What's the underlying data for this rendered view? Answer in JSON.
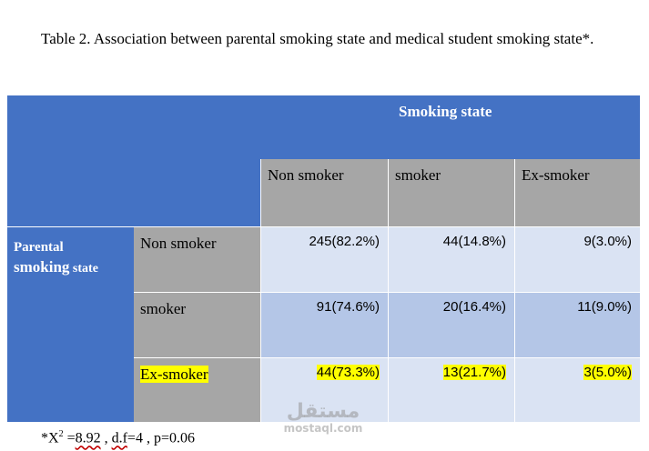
{
  "caption": "Table 2.  Association between parental smoking state and medical student smoking state*.",
  "table": {
    "col_group_header": "Smoking state",
    "columns": [
      "Non smoker",
      "smoker",
      "Ex-smoker"
    ],
    "row_group_header_line1": "Parental",
    "row_group_header_line2a": "smoking",
    "row_group_header_line2b": " state",
    "rows": [
      {
        "label": "Non smoker",
        "cells": [
          "245(82.2%)",
          "44(14.8%)",
          "9(3.0%)"
        ]
      },
      {
        "label": "smoker",
        "cells": [
          "91(74.6%)",
          "20(16.4%)",
          "11(9.0%)"
        ]
      },
      {
        "label": "Ex-smoker",
        "cells": [
          "44(73.3%)",
          "13(21.7%)",
          "3(5.0%)"
        ]
      }
    ]
  },
  "footnote": {
    "prefix": "*X",
    "sup": "2",
    "eq": " =",
    "chi_value": "8.92",
    "sep1": " , ",
    "df": "d.f",
    "rest": "=4 , p=0.06"
  },
  "watermark": {
    "glyph": "مستقل",
    "text": "mostaql.com"
  },
  "colors": {
    "header_blue": "#4472c4",
    "grey": "#a6a6a6",
    "light_row": "#dae3f3",
    "mid_row": "#b4c6e7",
    "highlight": "#ffff00"
  }
}
